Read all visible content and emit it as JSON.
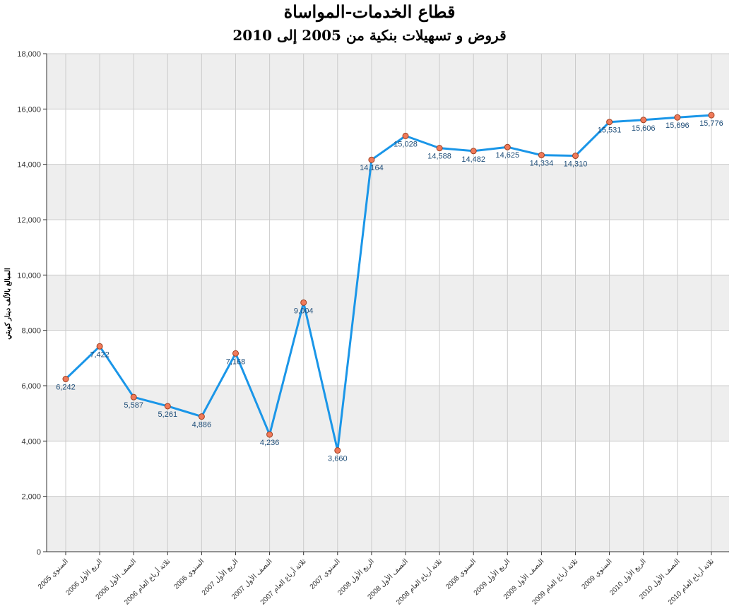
{
  "chart_data": {
    "type": "line",
    "title": "قطاع الخدمات-المواساة",
    "subtitle": "قروض و تسهيلات بنكية من 2005 إلى 2010",
    "xlabel": "",
    "ylabel": "المبالغ بالألف دينار كويتي",
    "ylim": [
      0,
      18000
    ],
    "yticks": [
      "0",
      "2,000",
      "4,000",
      "6,000",
      "8,000",
      "10,000",
      "12,000",
      "14,000",
      "16,000",
      "18,000"
    ],
    "grid": true,
    "categories": [
      "السنوي 2005",
      "الربع الأول 2006",
      "النصف الأول 2006",
      "ثلاثة أرباع العام 2006",
      "السنوي 2006",
      "الربع الأول 2007",
      "النصف الأول 2007",
      "ثلاثة أرباع العام 2007",
      "السنوي 2007",
      "الربع الأول 2008",
      "النصف الأول 2008",
      "ثلاثة أرباع العام 2008",
      "السنوي 2008",
      "الربع الأول 2009",
      "النصف الأول 2009",
      "ثلاثة أرباع العام 2009",
      "السنوي 2009",
      "الربع الأول 2010",
      "النصف الأول 2010",
      "ثلاثة أرباع العام 2010"
    ],
    "series": [
      {
        "values": [
          6242,
          7422,
          5587,
          5261,
          4886,
          7168,
          4236,
          9004,
          3660,
          14164,
          15028,
          14588,
          14482,
          14625,
          14334,
          14310,
          15531,
          15606,
          15696,
          15776
        ],
        "labels": [
          "6,242",
          "7,422",
          "5,587",
          "5,261",
          "4,886",
          "7,168",
          "4,236",
          "9,004",
          "3,660",
          "14,164",
          "15,028",
          "14,588",
          "14,482",
          "14,625",
          "14,334",
          "14,310",
          "15,531",
          "15,606",
          "15,696",
          "15,776"
        ]
      }
    ],
    "colors": {
      "line": "#1a96e8",
      "marker_fill": "#f07a5a",
      "marker_stroke": "#a04020",
      "label": "#1f4e79",
      "band": "#eeeeee",
      "grid": "#cccccc"
    }
  }
}
